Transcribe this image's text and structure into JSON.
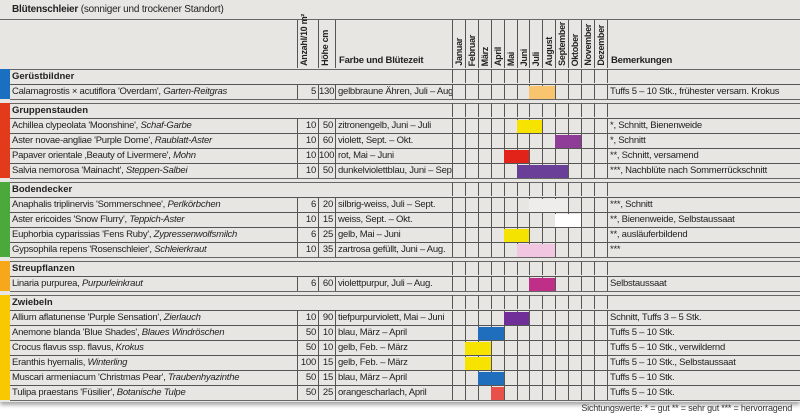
{
  "title": {
    "bold": "Blütenschleier",
    "rest": " (sonniger und trockener Standort)"
  },
  "headers": {
    "count": "Anzahl/10 m²",
    "height": "Höhe cm",
    "color": "Farbe und Blütezeit",
    "remarks": "Bemerkungen",
    "months": [
      "Januar",
      "Februar",
      "März",
      "April",
      "Mai",
      "Juni",
      "Juli",
      "August",
      "September",
      "Oktober",
      "November",
      "Dezember"
    ]
  },
  "groups": [
    {
      "name": "Gerüstbildner",
      "color": "#1a6fc0",
      "rows": [
        {
          "latin": "Calamagrostis × acutiflora 'Overdam', ",
          "common": "Garten-Reitgras",
          "count": "5",
          "height": "130",
          "bloom": "gelbbraune Ähren, Juli – Aug.",
          "months": [
            6,
            7
          ],
          "bar": "#f8c46e",
          "remarks": "Tuffs 5 – 10 Stk., frühester versam. Krokus"
        }
      ]
    },
    {
      "name": "Gruppenstauden",
      "color": "#e43a1c",
      "rows": [
        {
          "latin": "Achillea clypeolata 'Moonshine', ",
          "common": "Schaf-Garbe",
          "count": "10",
          "height": "50",
          "bloom": "zitronengelb, Juni – Juli",
          "months": [
            5,
            6
          ],
          "bar": "#f6e400",
          "remarks": "*, Schnitt, Bienenweide"
        },
        {
          "latin": "Aster novae-angliae 'Purple Dome', ",
          "common": "Raublatt-Aster",
          "count": "10",
          "height": "60",
          "bloom": "violett, Sept. – Okt.",
          "months": [
            8,
            9
          ],
          "bar": "#8e3c98",
          "remarks": "*, Schnitt"
        },
        {
          "latin": "Papaver orientale ‚Beauty of Livermere', ",
          "common": "Mohn",
          "count": "10",
          "height": "100",
          "bloom": "rot, Mai – Juni",
          "months": [
            4,
            5
          ],
          "bar": "#e2231a",
          "remarks": "**, Schnitt, versamend"
        },
        {
          "latin": "Salvia nemorosa 'Mainacht', ",
          "common": "Steppen-Salbei",
          "count": "10",
          "height": "50",
          "bloom": "dunkelviolettblau, Juni – Sept.",
          "months": [
            5,
            8
          ],
          "bar": "#6a3f98",
          "remarks": "***, Nachblüte nach Sommerrückschnitt"
        }
      ]
    },
    {
      "name": "Bodendecker",
      "color": "#4ba83b",
      "rows": [
        {
          "latin": "Anaphalis triplinervis 'Sommerschnee', ",
          "common": "Perlkörbchen",
          "count": "6",
          "height": "20",
          "bloom": "silbrig-weiss, Juli – Sept.",
          "months": [
            6,
            8
          ],
          "bar": "#efedeb",
          "remarks": "***, Schnitt"
        },
        {
          "latin": "Aster ericoides 'Snow Flurry', ",
          "common": "Teppich-Aster",
          "count": "10",
          "height": "15",
          "bloom": "weiss, Sept. – Okt.",
          "months": [
            8,
            9
          ],
          "bar": "#ffffff",
          "remarks": "**, Bienenweide, Selbstaussaat"
        },
        {
          "latin": "Euphorbia cyparissias 'Fens Ruby', ",
          "common": "Zypressenwolfsmilch",
          "count": "6",
          "height": "25",
          "bloom": "gelb, Mai – Juni",
          "months": [
            4,
            5
          ],
          "bar": "#f4e300",
          "remarks": "**, ausläuferbildend"
        },
        {
          "latin": "Gypsophila repens 'Rosenschleier', ",
          "common": "Schleierkraut",
          "count": "10",
          "height": "35",
          "bloom": "zartrosa gefüllt, Juni – Aug.",
          "months": [
            5,
            7
          ],
          "bar": "#f0c6e0",
          "remarks": "***"
        }
      ]
    },
    {
      "name": "Streupflanzen",
      "color": "#f6a81a",
      "rows": [
        {
          "latin": "Linaria purpurea, ",
          "common": "Purpurleinkraut",
          "count": "6",
          "height": "60",
          "bloom": "violettpurpur, Juli – Aug.",
          "months": [
            6,
            7
          ],
          "bar": "#bf2f88",
          "remarks": "Selbstaussaat"
        }
      ]
    },
    {
      "name": "Zwiebeln",
      "color": "#f8c800",
      "rows": [
        {
          "latin": "Allium aflatunense 'Purple Sensation', ",
          "common": "Zierlauch",
          "count": "10",
          "height": "90",
          "bloom": "tiefpurpurviolett, Mai – Juni",
          "months": [
            4,
            5
          ],
          "bar": "#6f2e98",
          "remarks": "Schnitt, Tuffs 3 – 5 Stk."
        },
        {
          "latin": "Anemone blanda 'Blue Shades', ",
          "common": "Blaues Windröschen",
          "count": "50",
          "height": "10",
          "bloom": "blau, März – April",
          "months": [
            2,
            3
          ],
          "bar": "#1f6dbd",
          "remarks": "Tuffs 5 – 10 Stk."
        },
        {
          "latin": "Crocus flavus ssp. flavus, ",
          "common": "Krokus",
          "count": "50",
          "height": "10",
          "bloom": "gelb, Feb. – März",
          "months": [
            1,
            2
          ],
          "bar": "#f6e400",
          "remarks": "Tuffs 5 – 10 Stk., verwildernd"
        },
        {
          "latin": "Eranthis hyemalis, ",
          "common": "Winterling",
          "count": "100",
          "height": "15",
          "bloom": "gelb, Feb. – März",
          "months": [
            1,
            2
          ],
          "bar": "#f6e400",
          "remarks": "Tuffs 5 – 10 Stk., Selbstaussaat"
        },
        {
          "latin": "Muscari armeniacum 'Christmas Pear', ",
          "common": "Traubenhyazinthe",
          "count": "50",
          "height": "15",
          "bloom": "blau, März – April",
          "months": [
            2,
            3
          ],
          "bar": "#1f6dbd",
          "remarks": "Tuffs 5 – 10 Stk."
        },
        {
          "latin": "Tulipa praestans 'Füsilier', ",
          "common": "Botanische Tulpe",
          "count": "50",
          "height": "25",
          "bloom": "orangescharlach, April",
          "months": [
            3,
            3
          ],
          "bar": "#e8504a",
          "remarks": "Tuffs 5 – 10 Stk."
        }
      ]
    }
  ],
  "footer": "Sichtungswerte: * = gut   ** = sehr gut   *** = hervorragend"
}
